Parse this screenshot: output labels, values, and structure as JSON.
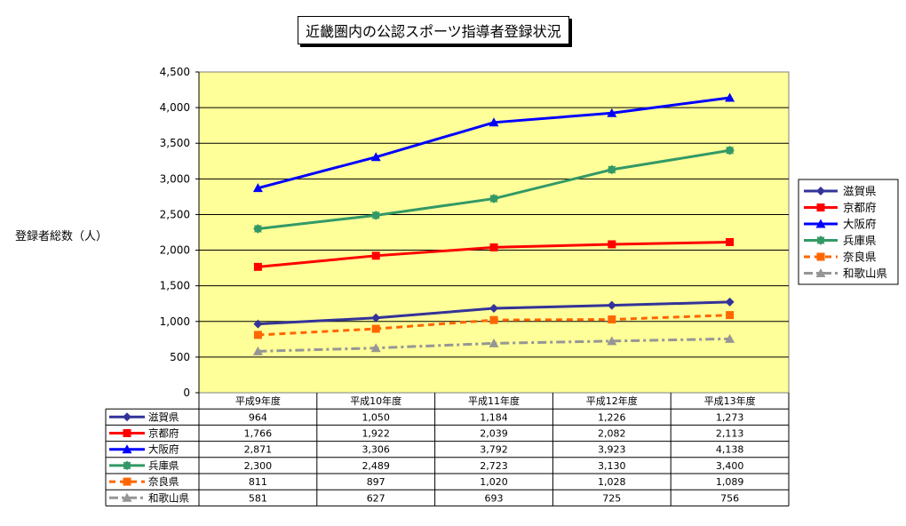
{
  "chart_data": {
    "type": "line",
    "title": "近畿圏内の公認スポーツ指導者登録状況",
    "ylabel": "登録者総数（人）",
    "xlabel": "",
    "categories": [
      "平成9年度",
      "平成10年度",
      "平成11年度",
      "平成12年度",
      "平成13年度"
    ],
    "ylim": [
      0,
      4500
    ],
    "yticks": [
      "0",
      "500",
      "1,000",
      "1,500",
      "2,000",
      "2,500",
      "3,000",
      "3,500",
      "4,000",
      "4,500"
    ],
    "grid": true,
    "legend_position": "right",
    "plot_background": "#ffff99",
    "series": [
      {
        "name": "滋賀県",
        "values": [
          964,
          1050,
          1184,
          1226,
          1273
        ],
        "labels": [
          "964",
          "1,050",
          "1,184",
          "1,226",
          "1,273"
        ],
        "color": "#333399",
        "marker": "diamond",
        "dash": "solid"
      },
      {
        "name": "京都府",
        "values": [
          1766,
          1922,
          2039,
          2082,
          2113
        ],
        "labels": [
          "1,766",
          "1,922",
          "2,039",
          "2,082",
          "2,113"
        ],
        "color": "#ff0000",
        "marker": "square",
        "dash": "solid"
      },
      {
        "name": "大阪府",
        "values": [
          2871,
          3306,
          3792,
          3923,
          4138
        ],
        "labels": [
          "2,871",
          "3,306",
          "3,792",
          "3,923",
          "4,138"
        ],
        "color": "#0000ff",
        "marker": "triangle",
        "dash": "solid"
      },
      {
        "name": "兵庫県",
        "values": [
          2300,
          2489,
          2723,
          3130,
          3400
        ],
        "labels": [
          "2,300",
          "2,489",
          "2,723",
          "3,130",
          "3,400"
        ],
        "color": "#339966",
        "marker": "star",
        "dash": "solid"
      },
      {
        "name": "奈良県",
        "values": [
          811,
          897,
          1020,
          1028,
          1089
        ],
        "labels": [
          "811",
          "897",
          "1,020",
          "1,028",
          "1,089"
        ],
        "color": "#ff6600",
        "marker": "square",
        "dash": "dash"
      },
      {
        "name": "和歌山県",
        "values": [
          581,
          627,
          693,
          725,
          756
        ],
        "labels": [
          "581",
          "627",
          "693",
          "725",
          "756"
        ],
        "color": "#969696",
        "marker": "triangle",
        "dash": "dashdot"
      }
    ]
  }
}
